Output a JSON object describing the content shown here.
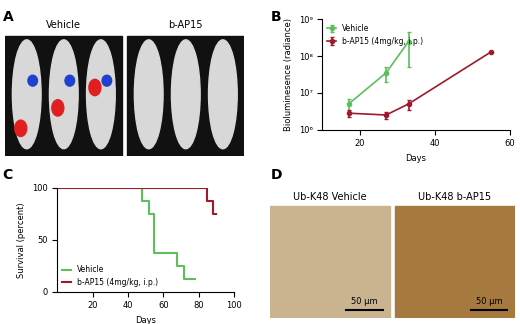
{
  "panels": [
    {
      "label": "A",
      "type": "image",
      "images": [
        {
          "caption": "Vehicle"
        },
        {
          "caption": "b-AP15"
        }
      ]
    },
    {
      "label": "D",
      "type": "image",
      "images": [
        {
          "caption": "Ub-K48 Vehicle",
          "scale_bar": "50 µm"
        },
        {
          "caption": "Ub-K48 b-AP15",
          "scale_bar": "50 µm"
        }
      ]
    }
  ],
  "chart_data": [
    {
      "label": "B",
      "type": "line",
      "x_label": "Days",
      "y_label": "Bioluminesence (radiance)",
      "log": "y",
      "xlim": [
        10,
        60
      ],
      "xticks": [
        20,
        40,
        60
      ],
      "ylim": [
        1000000,
        1000000000
      ],
      "yticks": [
        {
          "value": 1000000,
          "label": "10⁶"
        },
        {
          "value": 10000000,
          "label": "10⁷"
        },
        {
          "value": 100000000,
          "label": "10⁸"
        },
        {
          "value": 1000000000,
          "label": "10⁹"
        }
      ],
      "legend": "upper left",
      "marker": "circle",
      "series": [
        {
          "name": "Vehicle",
          "color": "#5cbf5c",
          "x": [
            17,
            27,
            33
          ],
          "values": [
            5000000,
            35000000,
            250000000
          ],
          "errors": [
            2000000,
            15000000,
            200000000
          ]
        },
        {
          "name": "b-AP15 (4mg/kg, i.p.)",
          "color": "#a0182b",
          "x": [
            17,
            27,
            33,
            55
          ],
          "values": [
            2800000,
            2500000,
            5000000,
            130000000
          ],
          "errors": [
            600000,
            500000,
            1500000,
            0
          ]
        }
      ]
    },
    {
      "label": "C",
      "type": "step",
      "x_label": "Days",
      "y_label": "Survival (percent)",
      "xlim": [
        0,
        100
      ],
      "xticks": [
        20,
        40,
        60,
        80,
        100
      ],
      "ylim": [
        0,
        100
      ],
      "yticks": [
        0,
        50,
        100
      ],
      "legend": "lower left",
      "series": [
        {
          "name": "Vehicle",
          "color": "#5cbf5c",
          "x": [
            0,
            48,
            52,
            55,
            68,
            72,
            78
          ],
          "values": [
            100,
            87.5,
            75,
            37.5,
            25,
            12.5,
            12.5
          ]
        },
        {
          "name": "b-AP15 (4mg/kg, i.p.)",
          "color": "#a0182b",
          "x": [
            0,
            85,
            88,
            90
          ],
          "values": [
            100,
            87.5,
            75,
            75
          ]
        }
      ]
    }
  ]
}
